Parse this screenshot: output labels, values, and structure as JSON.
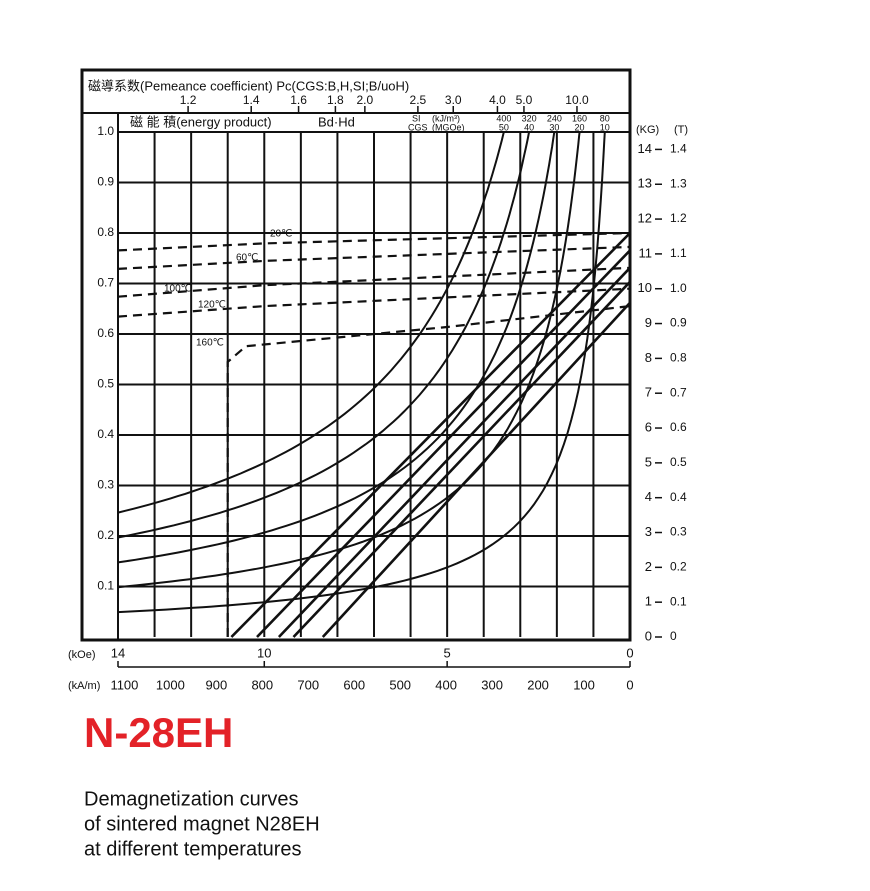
{
  "chart_data": {
    "type": "line",
    "title": "N-28EH",
    "description": [
      "Demagnetization curves",
      "of sintered magnet N28EH",
      "at different temperatures"
    ],
    "permeance_title": "磁導系数(Pemeance coefficient) Pc(CGS:B,H,SI;B/uoH)",
    "permeance_ticks": [
      1.2,
      1.4,
      1.6,
      1.8,
      {
        "value": 2,
        "label": "2.0"
      },
      2.5,
      {
        "value": 3,
        "label": "3.0"
      },
      {
        "value": 4,
        "label": "4.0"
      },
      {
        "value": 5,
        "label": "5.0"
      },
      {
        "value": 10,
        "label": "10.0"
      }
    ],
    "energy_title": "磁 能 積(energy product)",
    "energy_symbol": "Bd·Hd",
    "energy_si_label": "SI",
    "energy_si_unit": "(kJ/m³)",
    "energy_cgs_label": "CGS",
    "energy_cgs_unit": "(MGOe)",
    "energy_ticks_si": [
      400,
      320,
      240,
      160,
      80
    ],
    "energy_ticks_cgs": [
      50,
      40,
      30,
      20,
      10
    ],
    "xlabel": "(kOe)",
    "xlim": [
      14,
      0
    ],
    "xticks": [
      14,
      10,
      5,
      0
    ],
    "xminorticks": [
      13,
      12,
      11,
      9,
      8,
      7,
      6,
      4,
      3,
      2,
      1
    ],
    "x2label": "(kA/m)",
    "x2lim": [
      1114,
      0
    ],
    "x2ticks": [
      1100,
      1000,
      900,
      800,
      700,
      600,
      500,
      400,
      300,
      200,
      100,
      0
    ],
    "ylim": [
      0,
      1
    ],
    "yticks": [
      0.1,
      0.2,
      0.3,
      0.4,
      0.5,
      0.6,
      0.7,
      0.8,
      0.9,
      {
        "value": 1,
        "label": "1.0"
      }
    ],
    "y2label": "(KG)",
    "y2lim": [
      0,
      14.5
    ],
    "y2ticks": [
      0,
      1,
      2,
      3,
      4,
      5,
      6,
      7,
      8,
      9,
      10,
      11,
      12,
      13,
      14
    ],
    "y3label": "(T)",
    "y3lim": [
      0,
      1.45
    ],
    "y3ticks": [
      0,
      0.1,
      0.2,
      0.3,
      0.4,
      0.5,
      0.6,
      0.7,
      0.8,
      0.9,
      {
        "value": 1,
        "label": "1.0"
      },
      1.1,
      1.2,
      1.3,
      1.4
    ],
    "grid": true,
    "color": "#111111",
    "title_color": "#e32228",
    "series": [
      {
        "name": "20℃",
        "axis": "y2",
        "x": [
          14,
          10,
          5,
          0
        ],
        "values": [
          11.1,
          11.3,
          11.45,
          11.6
        ],
        "normal_x": [
          10.9,
          0
        ],
        "normal_values": [
          0,
          11.6
        ]
      },
      {
        "name": "60℃",
        "axis": "y2",
        "x": [
          14,
          10,
          5,
          0
        ],
        "values": [
          10.57,
          10.8,
          11.0,
          11.2
        ],
        "normal_x": [
          10.2,
          0
        ],
        "normal_values": [
          0,
          11.1
        ]
      },
      {
        "name": "100℃",
        "axis": "y2",
        "x": [
          14,
          10,
          5,
          0
        ],
        "values": [
          9.77,
          10.1,
          10.35,
          10.6
        ],
        "normal_x": [
          9.6,
          0
        ],
        "normal_values": [
          0,
          10.6
        ]
      },
      {
        "name": "120℃",
        "axis": "y2",
        "x": [
          14,
          10,
          5,
          0
        ],
        "values": [
          9.2,
          9.5,
          9.75,
          10.0
        ],
        "normal_x": [
          9.2,
          0
        ],
        "normal_values": [
          0,
          10.2
        ]
      },
      {
        "name": "160℃",
        "axis": "y2",
        "x": [
          11,
          11,
          10.5,
          8,
          5,
          0
        ],
        "values": [
          0,
          7.9,
          8.35,
          8.6,
          8.9,
          9.5
        ],
        "normal_x": [
          8.4,
          0
        ],
        "normal_values": [
          0,
          9.6
        ]
      }
    ]
  }
}
